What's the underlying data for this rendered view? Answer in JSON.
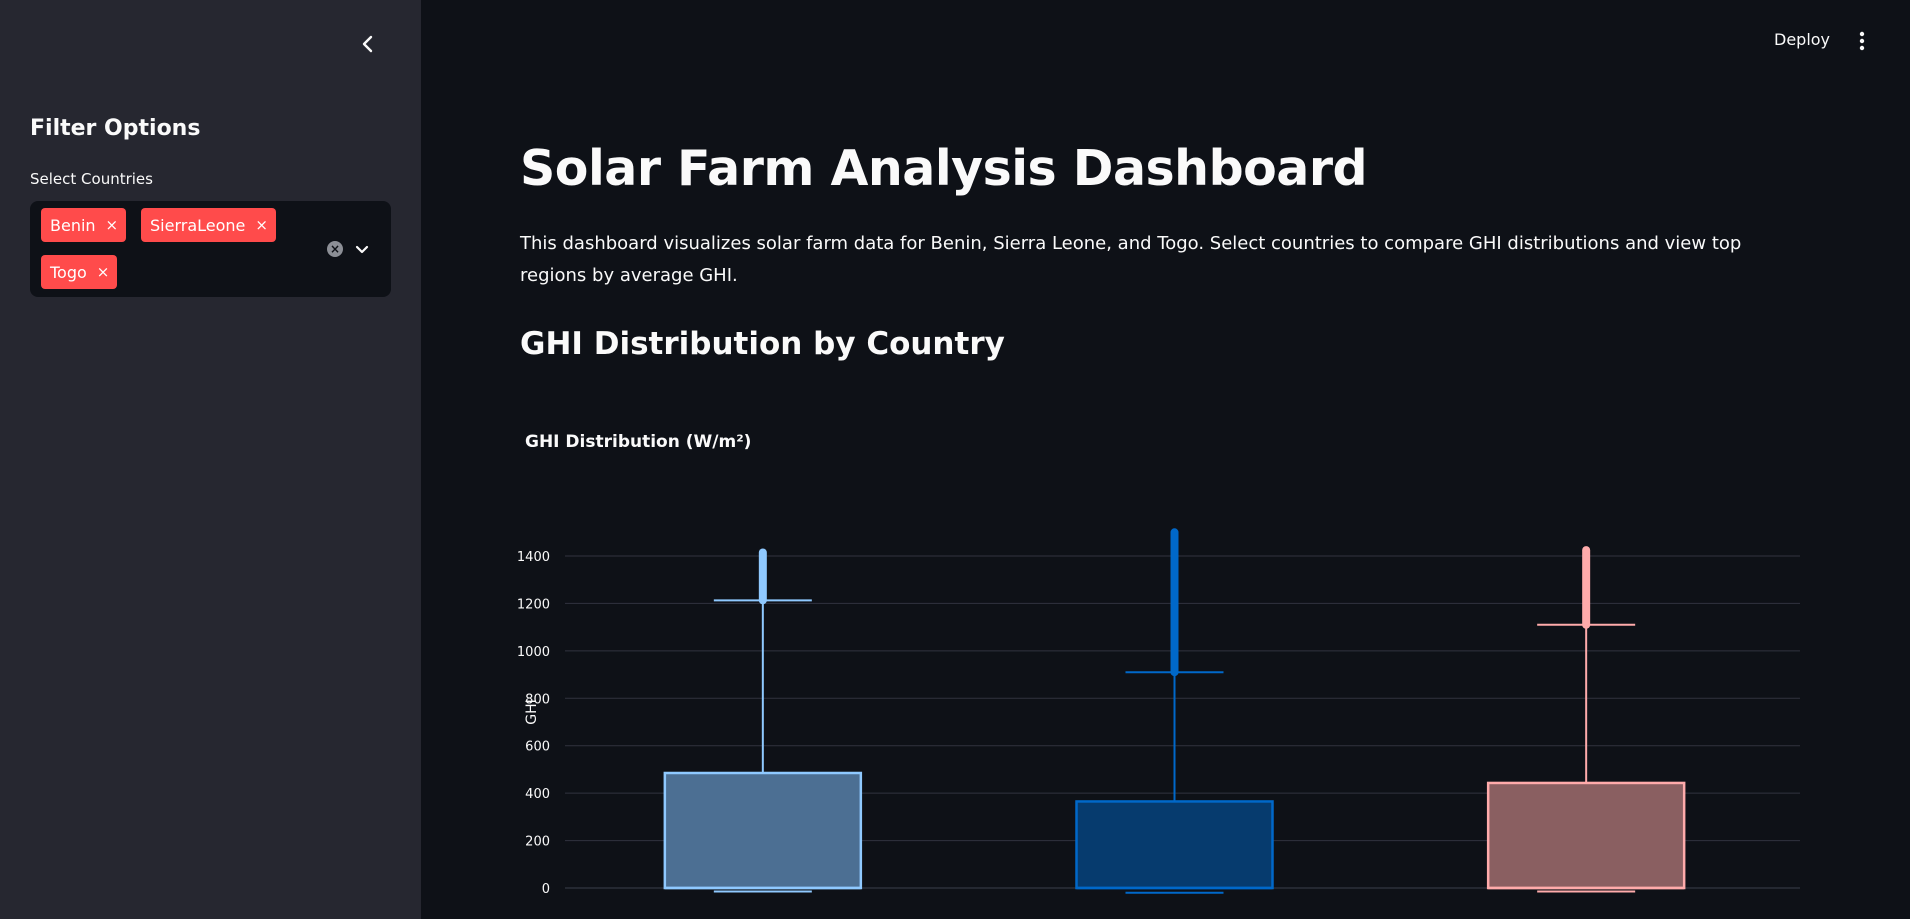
{
  "sidebar": {
    "heading": "Filter Options",
    "select_label": "Select Countries",
    "selected": [
      "Benin",
      "SierraLeone",
      "Togo"
    ],
    "remove_glyph": "×",
    "clear_glyph": "×",
    "collapse_icon": "chevron-left-icon",
    "dropdown_icon": "chevron-down-icon"
  },
  "header": {
    "deploy_label": "Deploy",
    "menu_icon": "more-vertical-icon"
  },
  "main": {
    "title": "Solar Farm Analysis Dashboard",
    "intro": "This dashboard visualizes solar farm data for Benin, Sierra Leone, and Togo. Select countries to compare GHI distributions and view top regions by average GHI.",
    "section_title": "GHI Distribution by Country",
    "chart_title": "GHI Distribution (W/m²)"
  },
  "colors": {
    "tag": "#ff4b4b",
    "sidebar_bg": "#262730",
    "main_bg": "#0e1117",
    "benin": "#8fc9ff",
    "sierra_leone": "#0068c9",
    "togo": "#ffabab"
  },
  "chart_data": {
    "type": "box",
    "title": "GHI Distribution (W/m²)",
    "ylabel": "GHI",
    "ylim": [
      0,
      1500
    ],
    "y_ticks": [
      0,
      200,
      400,
      600,
      800,
      1000,
      1200,
      1400
    ],
    "grid": true,
    "series": [
      {
        "name": "Benin",
        "color": "#8fc9ff",
        "fill": "#4c6f93",
        "min": -15,
        "q1": 0,
        "median": 0,
        "q3": 485,
        "upper_whisker": 1213,
        "outlier_max": 1415
      },
      {
        "name": "SierraLeone",
        "color": "#0068c9",
        "fill": "#063b6e",
        "min": -20,
        "q1": 0,
        "median": 0,
        "q3": 365,
        "upper_whisker": 910,
        "outlier_max": 1500
      },
      {
        "name": "Togo",
        "color": "#ffabab",
        "fill": "#8a5f61",
        "min": -15,
        "q1": 0,
        "median": 0,
        "q3": 443,
        "upper_whisker": 1110,
        "outlier_max": 1425
      }
    ]
  }
}
